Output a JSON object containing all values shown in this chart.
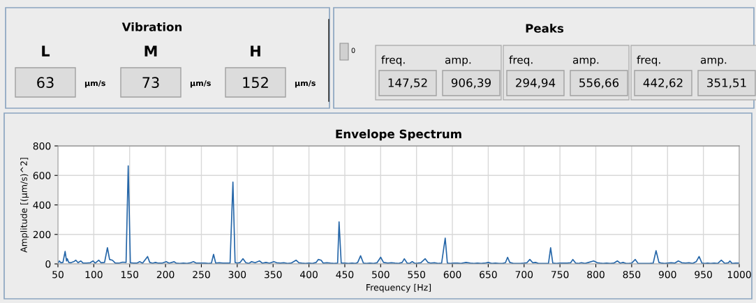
{
  "chart_data": [
    {
      "type": "other",
      "title": "Vibration",
      "categories": [
        "L",
        "M",
        "H"
      ],
      "values": [
        63,
        73,
        152
      ],
      "data_labels": true,
      "annotations": [
        "µm/s",
        "µm/s",
        "µm/s"
      ]
    },
    {
      "type": "other",
      "title": "Peaks",
      "categories": [
        "freq.",
        "amp.",
        "freq.",
        "amp.",
        "freq.",
        "amp."
      ],
      "values": [
        147.52,
        906.39,
        294.94,
        556.66,
        442.62,
        351.51
      ],
      "value_labels": [
        "147,52",
        "906,39",
        "294,94",
        "556,66",
        "442,62",
        "351,51"
      ],
      "annotations": [
        "0"
      ]
    },
    {
      "type": "line",
      "title": "Envelope Spectrum",
      "xlabel": "Frequency [Hz]",
      "ylabel": "Amplitude [(µm/s)^2]",
      "xlim": [
        50,
        1000
      ],
      "xticks": [
        50,
        100,
        150,
        200,
        250,
        300,
        350,
        400,
        450,
        500,
        550,
        600,
        650,
        700,
        750,
        800,
        850,
        900,
        950,
        1000
      ],
      "ylim": [
        0,
        800
      ],
      "yticks": [
        0,
        200,
        400,
        600,
        800
      ],
      "grid": true,
      "series": [
        {
          "color": "#2566a8",
          "x": [
            50,
            52,
            54,
            57,
            60,
            62,
            63,
            65,
            68,
            72,
            75,
            78,
            82,
            85,
            90,
            95,
            99,
            102,
            107,
            110,
            115,
            119,
            122,
            126,
            130,
            135,
            140,
            145,
            148,
            151,
            155,
            160,
            164,
            168,
            175,
            178,
            182,
            186,
            190,
            195,
            201,
            205,
            212,
            215,
            220,
            225,
            230,
            235,
            239,
            243,
            250,
            255,
            260,
            264,
            267,
            270,
            275,
            280,
            285,
            290,
            294,
            297,
            300,
            304,
            308,
            312,
            316,
            320,
            325,
            331,
            335,
            340,
            345,
            351,
            355,
            360,
            365,
            370,
            375,
            382,
            386,
            390,
            395,
            400,
            405,
            410,
            413,
            417,
            420,
            425,
            430,
            435,
            440,
            442,
            445,
            450,
            455,
            460,
            465,
            468,
            472,
            476,
            480,
            485,
            490,
            495,
            500,
            504,
            510,
            515,
            520,
            525,
            530,
            533,
            537,
            540,
            544,
            548,
            552,
            556,
            562,
            566,
            570,
            575,
            580,
            585,
            590,
            593,
            597,
            602,
            607,
            612,
            619,
            625,
            630,
            635,
            640,
            645,
            650,
            655,
            660,
            665,
            670,
            674,
            677,
            680,
            685,
            690,
            695,
            700,
            704,
            708,
            712,
            716,
            720,
            725,
            730,
            734,
            737,
            740,
            745,
            750,
            755,
            760,
            765,
            768,
            772,
            776,
            780,
            785,
            790,
            797,
            802,
            806,
            810,
            815,
            820,
            825,
            830,
            834,
            838,
            842,
            846,
            850,
            855,
            859,
            864,
            870,
            875,
            880,
            884,
            888,
            892,
            896,
            900,
            905,
            910,
            915,
            920,
            925,
            930,
            935,
            940,
            944,
            948,
            952,
            956,
            960,
            965,
            970,
            975,
            980,
            985,
            987,
            990,
            995,
            1000
          ],
          "values": [
            5,
            20,
            8,
            10,
            85,
            20,
            35,
            10,
            8,
            15,
            25,
            8,
            20,
            5,
            5,
            8,
            20,
            5,
            25,
            8,
            10,
            110,
            30,
            25,
            5,
            5,
            12,
            10,
            665,
            8,
            5,
            5,
            15,
            5,
            50,
            10,
            5,
            10,
            5,
            5,
            15,
            5,
            15,
            5,
            3,
            5,
            3,
            8,
            15,
            5,
            5,
            5,
            3,
            5,
            65,
            5,
            8,
            5,
            5,
            5,
            555,
            10,
            5,
            10,
            35,
            8,
            3,
            15,
            8,
            20,
            5,
            10,
            5,
            15,
            8,
            5,
            8,
            3,
            5,
            25,
            8,
            5,
            3,
            5,
            3,
            10,
            30,
            25,
            5,
            8,
            5,
            3,
            5,
            285,
            5,
            5,
            3,
            5,
            3,
            10,
            55,
            5,
            3,
            5,
            3,
            8,
            45,
            10,
            5,
            8,
            5,
            3,
            10,
            35,
            5,
            3,
            15,
            3,
            5,
            8,
            35,
            10,
            5,
            8,
            3,
            5,
            175,
            5,
            3,
            5,
            5,
            3,
            10,
            5,
            3,
            5,
            3,
            5,
            10,
            3,
            5,
            3,
            3,
            8,
            45,
            10,
            3,
            3,
            3,
            5,
            8,
            30,
            8,
            10,
            3,
            3,
            3,
            3,
            110,
            5,
            3,
            5,
            5,
            5,
            8,
            30,
            5,
            3,
            8,
            3,
            10,
            20,
            8,
            5,
            3,
            5,
            3,
            5,
            20,
            5,
            10,
            3,
            3,
            5,
            30,
            3,
            3,
            3,
            3,
            5,
            90,
            10,
            5,
            3,
            5,
            8,
            5,
            20,
            8,
            5,
            8,
            3,
            15,
            50,
            5,
            3,
            5,
            3,
            5,
            3,
            25,
            3,
            8,
            20,
            3,
            5,
            5
          ]
        }
      ]
    }
  ]
}
